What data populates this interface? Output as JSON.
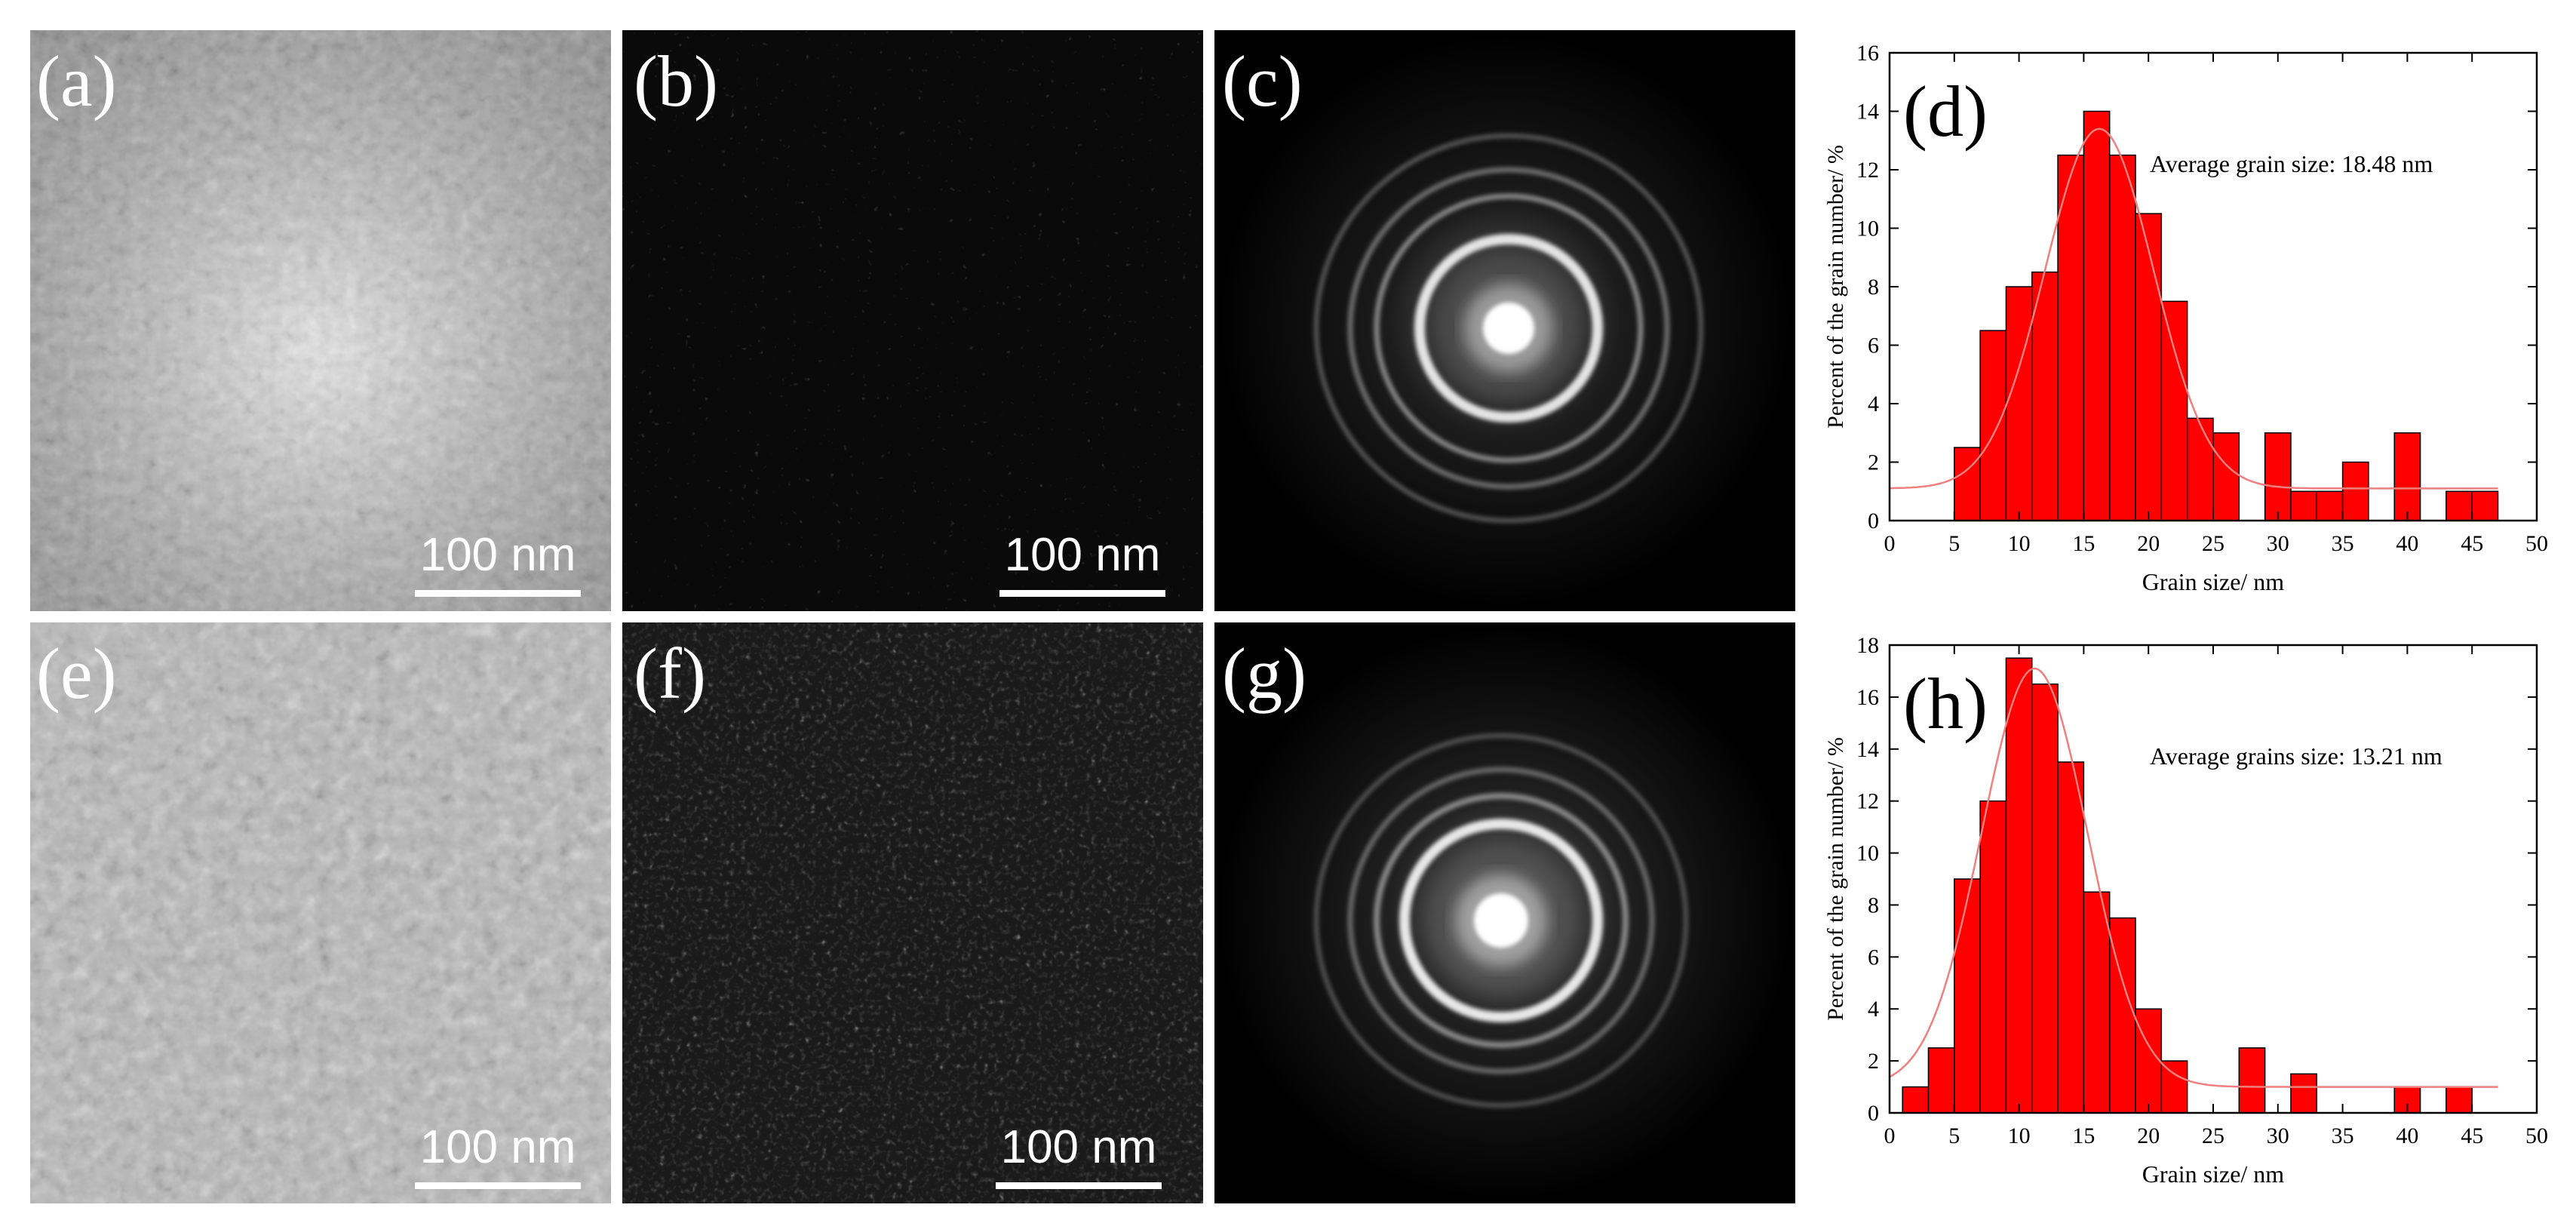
{
  "panels": {
    "a": {
      "label": "(a)",
      "scale": "100 nm"
    },
    "b": {
      "label": "(b)",
      "scale": "100 nm"
    },
    "c": {
      "label": "(c)"
    },
    "e": {
      "label": "(e)",
      "scale": "100 nm"
    },
    "f": {
      "label": "(f)",
      "scale": "100 nm"
    },
    "g": {
      "label": "(g)"
    }
  },
  "chart_data": [
    {
      "type": "bar",
      "panel_label": "(d)",
      "annotation": "Average grain size: 18.48 nm",
      "xlabel": "Grain size/ nm",
      "ylabel": "Percent of the grain number/ %",
      "xlim": [
        0,
        50
      ],
      "ylim": [
        0,
        16
      ],
      "xticks": [
        0,
        5,
        10,
        15,
        20,
        25,
        30,
        35,
        40,
        45,
        50
      ],
      "yticks": [
        0,
        2,
        4,
        6,
        8,
        10,
        12,
        14,
        16
      ],
      "bin_width": 2,
      "x": [
        6,
        8,
        10,
        12,
        14,
        16,
        18,
        20,
        22,
        24,
        26,
        30,
        32,
        34,
        36,
        40,
        44,
        46
      ],
      "values": [
        2.5,
        6.5,
        8,
        8.5,
        12.5,
        14,
        12.5,
        10.5,
        7.5,
        3.5,
        3,
        3,
        1,
        1,
        2,
        3,
        1,
        1
      ],
      "fit": {
        "y0": 1.1,
        "A": 12.3,
        "xc": 16.2,
        "sigma": 4.2
      },
      "bar_color": "#ff0000",
      "fit_color": "#f08080",
      "grid": false
    },
    {
      "type": "bar",
      "panel_label": "(h)",
      "annotation": "Average grains size: 13.21 nm",
      "xlabel": "Grain size/ nm",
      "ylabel": "Percent of the grain number/ %",
      "xlim": [
        0,
        50
      ],
      "ylim": [
        0,
        18
      ],
      "xticks": [
        0,
        5,
        10,
        15,
        20,
        25,
        30,
        35,
        40,
        45,
        50
      ],
      "yticks": [
        0,
        2,
        4,
        6,
        8,
        10,
        12,
        14,
        16,
        18
      ],
      "bin_width": 2,
      "x": [
        2,
        4,
        6,
        8,
        10,
        12,
        14,
        16,
        18,
        20,
        22,
        28,
        32,
        40,
        44
      ],
      "values": [
        1,
        2.5,
        9,
        12,
        17.5,
        16.5,
        13.5,
        8.5,
        7.5,
        4,
        2,
        2.5,
        1.5,
        1,
        1
      ],
      "fit": {
        "y0": 1.0,
        "A": 16.1,
        "xc": 11.2,
        "sigma": 4.1
      },
      "bar_color": "#ff0000",
      "fit_color": "#f08080",
      "grid": false
    }
  ]
}
